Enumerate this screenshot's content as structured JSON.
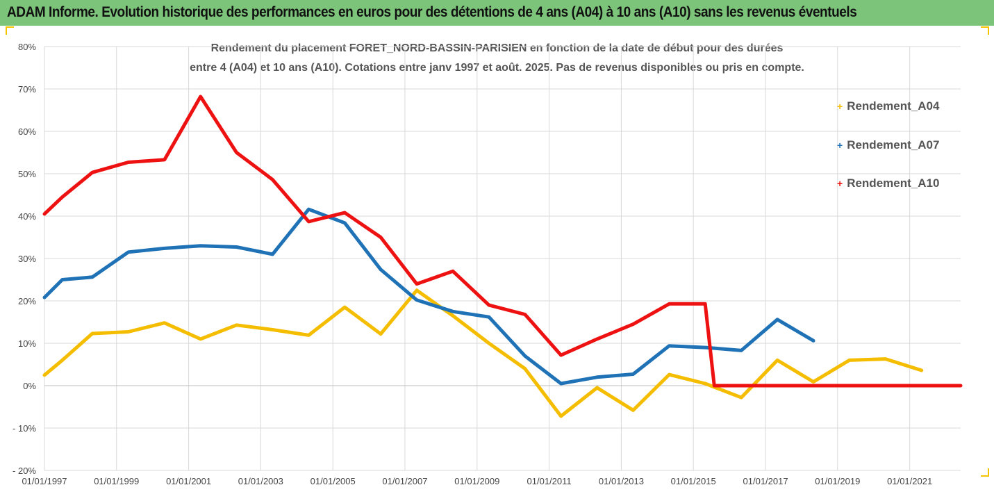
{
  "header": {
    "text": "ADAM Informe. Evolution historique des performances en euros pour des détentions de 4 ans (A04) à 10 ans (A10) sans les revenus éventuels"
  },
  "chart_data": {
    "type": "line",
    "title_line1": "Rendement du placement FORET_NORD-BASSIN-PARISIEN en fonction de la date de début pour des durées",
    "title_line2": "entre 4 (A04) et 10 ans (A10). Cotations entre janv 1997 et août. 2025. Pas de revenus disponibles ou pris en compte.",
    "xlabel": "",
    "ylabel": "",
    "x_range": [
      "1997-01-01",
      "2022-06-01"
    ],
    "x_ticks": [
      "01/01/1997",
      "01/01/1999",
      "01/01/2001",
      "01/01/2003",
      "01/01/2005",
      "01/01/2007",
      "01/01/2009",
      "01/01/2011",
      "01/01/2013",
      "01/01/2015",
      "01/01/2017",
      "01/01/2019",
      "01/01/2021"
    ],
    "ylim": [
      -20,
      80
    ],
    "y_ticks": [
      "80%",
      "70%",
      "60%",
      "50%",
      "40%",
      "30%",
      "20%",
      "10%",
      "0%",
      "- 10%",
      "- 20%"
    ],
    "grid": true,
    "legend_position": "right",
    "series": [
      {
        "name": "Rendement_A04",
        "color": "#f5bd00",
        "points": [
          [
            "1997-01-01",
            2.5
          ],
          [
            "1997-07-01",
            6
          ],
          [
            "1998-05-01",
            12.3
          ],
          [
            "1999-05-01",
            12.7
          ],
          [
            "2000-05-01",
            14.8
          ],
          [
            "2001-05-01",
            11
          ],
          [
            "2002-05-01",
            14.3
          ],
          [
            "2003-05-01",
            13.2
          ],
          [
            "2004-05-01",
            11.9
          ],
          [
            "2005-05-01",
            18.5
          ],
          [
            "2006-05-01",
            12.2
          ],
          [
            "2007-05-01",
            22.5
          ],
          [
            "2008-05-01",
            16.5
          ],
          [
            "2009-05-01",
            10
          ],
          [
            "2010-05-01",
            4
          ],
          [
            "2011-05-01",
            -7.2
          ],
          [
            "2012-05-01",
            -0.5
          ],
          [
            "2013-05-01",
            -5.8
          ],
          [
            "2014-05-01",
            2.6
          ],
          [
            "2015-05-01",
            0.5
          ],
          [
            "2016-05-01",
            -2.8
          ],
          [
            "2017-05-01",
            6
          ],
          [
            "2018-05-01",
            0.9
          ],
          [
            "2019-05-01",
            6
          ],
          [
            "2020-05-01",
            6.3
          ],
          [
            "2021-05-01",
            3.6
          ]
        ]
      },
      {
        "name": "Rendement_A07",
        "color": "#1f72b6",
        "points": [
          [
            "1997-01-01",
            20.8
          ],
          [
            "1997-07-01",
            25
          ],
          [
            "1998-05-01",
            25.6
          ],
          [
            "1999-05-01",
            31.5
          ],
          [
            "2000-05-01",
            32.4
          ],
          [
            "2001-05-01",
            33
          ],
          [
            "2002-05-01",
            32.7
          ],
          [
            "2003-05-01",
            31
          ],
          [
            "2004-05-01",
            41.6
          ],
          [
            "2005-05-01",
            38.4
          ],
          [
            "2006-05-01",
            27.4
          ],
          [
            "2007-05-01",
            20.2
          ],
          [
            "2008-05-01",
            17.5
          ],
          [
            "2009-05-01",
            16.2
          ],
          [
            "2010-05-01",
            7
          ],
          [
            "2011-05-01",
            0.5
          ],
          [
            "2012-05-01",
            2
          ],
          [
            "2013-05-01",
            2.7
          ],
          [
            "2014-05-01",
            9.4
          ],
          [
            "2015-05-01",
            9
          ],
          [
            "2016-05-01",
            8.3
          ],
          [
            "2017-05-01",
            15.6
          ],
          [
            "2018-05-01",
            10.6
          ]
        ]
      },
      {
        "name": "Rendement_A10",
        "color": "#ee1111",
        "points": [
          [
            "1997-01-01",
            40.5
          ],
          [
            "1997-07-01",
            44.5
          ],
          [
            "1998-05-01",
            50.3
          ],
          [
            "1999-05-01",
            52.7
          ],
          [
            "2000-05-01",
            53.3
          ],
          [
            "2001-05-01",
            68.2
          ],
          [
            "2002-05-01",
            55
          ],
          [
            "2003-05-01",
            48.6
          ],
          [
            "2004-05-01",
            38.7
          ],
          [
            "2005-05-01",
            40.8
          ],
          [
            "2006-05-01",
            35
          ],
          [
            "2007-05-01",
            24
          ],
          [
            "2008-05-01",
            27
          ],
          [
            "2009-05-01",
            19
          ],
          [
            "2010-05-01",
            16.8
          ],
          [
            "2011-05-01",
            7.2
          ],
          [
            "2012-05-01",
            11
          ],
          [
            "2013-05-01",
            14.5
          ],
          [
            "2014-05-01",
            19.3
          ],
          [
            "2015-05-01",
            19.3
          ],
          [
            "2015-08-01",
            0
          ],
          [
            "2022-06-01",
            0
          ]
        ]
      }
    ]
  }
}
